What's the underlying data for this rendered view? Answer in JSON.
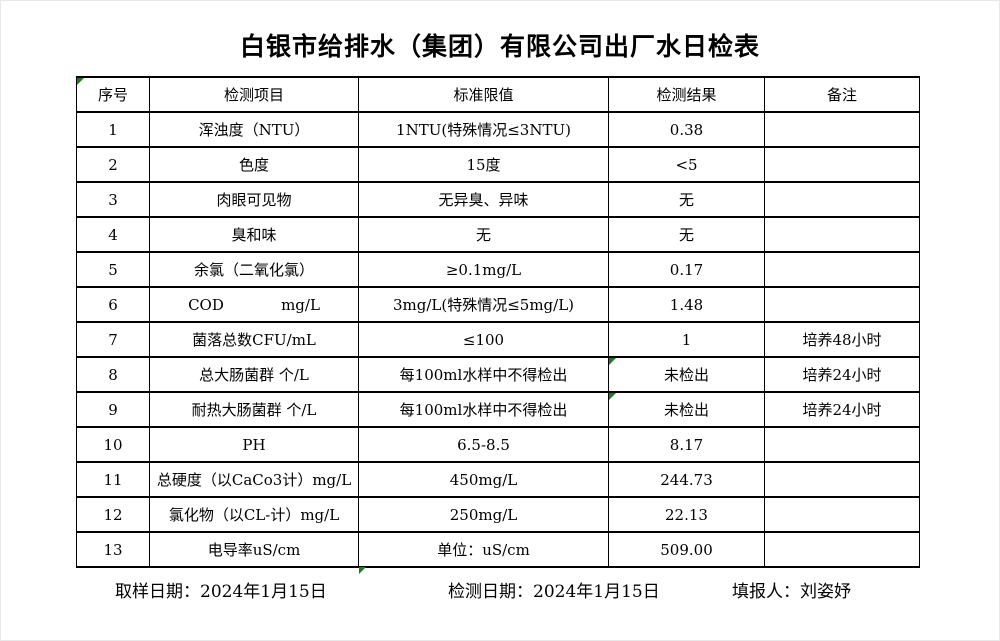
{
  "title": "白银市给排水（集团）有限公司出厂水日检表",
  "table": {
    "headers": [
      "序号",
      "检测项目",
      "标准限值",
      "检测结果",
      "备注"
    ],
    "rows": [
      {
        "no": "1",
        "item": "浑浊度（NTU）",
        "standard": "1NTU(特殊情况≤3NTU)",
        "result": "0.38",
        "note": "",
        "result_marker": false
      },
      {
        "no": "2",
        "item": "色度",
        "standard": "15度",
        "result": "<5",
        "note": "",
        "result_marker": false
      },
      {
        "no": "3",
        "item": "肉眼可见物",
        "standard": "无异臭、异味",
        "result": "无",
        "note": "",
        "result_marker": false
      },
      {
        "no": "4",
        "item": "臭和味",
        "standard": "无",
        "result": "无",
        "note": "",
        "result_marker": false
      },
      {
        "no": "5",
        "item": "余氯（二氧化氯）",
        "standard": "≥0.1mg/L",
        "result": "0.17",
        "note": "",
        "result_marker": false
      },
      {
        "no": "6",
        "item": "COD            mg/L",
        "standard": "3mg/L(特殊情况≤5mg/L)",
        "result": "1.48",
        "note": "",
        "result_marker": false
      },
      {
        "no": "7",
        "item": "菌落总数CFU/mL",
        "standard": "≤100",
        "result": "1",
        "note": "培养48小时",
        "result_marker": false
      },
      {
        "no": "8",
        "item": "总大肠菌群 个/L",
        "standard": "每100ml水样中不得检出",
        "result": "未检出",
        "note": "培养24小时",
        "result_marker": true
      },
      {
        "no": "9",
        "item": "耐热大肠菌群 个/L",
        "standard": "每100ml水样中不得检出",
        "result": "未检出",
        "note": "培养24小时",
        "result_marker": true
      },
      {
        "no": "10",
        "item": "PH",
        "standard": "6.5-8.5",
        "result": "8.17",
        "note": "",
        "result_marker": false
      },
      {
        "no": "11",
        "item": "总硬度（以CaCo3计）mg/L",
        "standard": "450mg/L",
        "result": "244.73",
        "note": "",
        "result_marker": false
      },
      {
        "no": "12",
        "item": "氯化物（以CL-计）mg/L",
        "standard": "250mg/L",
        "result": "22.13",
        "note": "",
        "result_marker": false
      },
      {
        "no": "13",
        "item": "电导率uS/cm",
        "standard": "单位：uS/cm",
        "result": "509.00",
        "note": "",
        "result_marker": false
      }
    ],
    "header_marker": true,
    "footer_marker": true
  },
  "footer": {
    "items": [
      {
        "label": "取样日期：",
        "value": "2024年1月15日"
      },
      {
        "label": "检测日期：",
        "value": "2024年1月15日"
      },
      {
        "label": "填报人：",
        "value": "刘姿妤"
      }
    ]
  },
  "icons": {
    "error_indicator": "excel-error-indicator-corner-triangle"
  },
  "colors": {
    "background": "#ffffff",
    "border": "#000000",
    "text": "#000000",
    "marker_green": "#1e7b1e"
  }
}
